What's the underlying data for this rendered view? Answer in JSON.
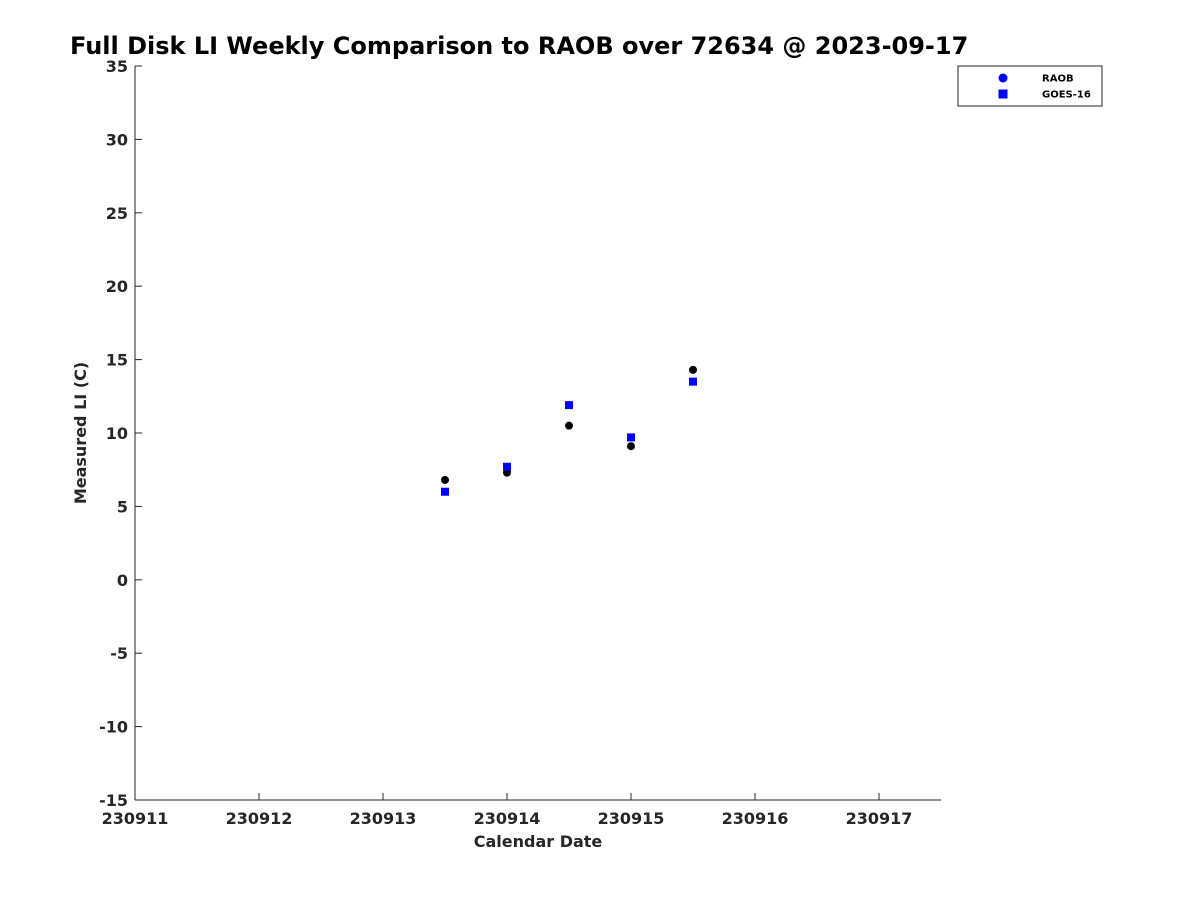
{
  "chart_data": {
    "type": "scatter",
    "title": "Full Disk LI Weekly Comparison to RAOB over 72634 @ 2023-09-17",
    "xlabel": "Calendar Date",
    "ylabel": "Measured LI (C)",
    "x_ticks": [
      "230911",
      "230912",
      "230913",
      "230914",
      "230915",
      "230916",
      "230917"
    ],
    "y_ticks": [
      "35",
      "30",
      "25",
      "20",
      "15",
      "10",
      "5",
      "0",
      "-5",
      "-10",
      "-15"
    ],
    "xlim": [
      0,
      6.5
    ],
    "ylim": [
      -15,
      35
    ],
    "grid": false,
    "legend_position": "top-right",
    "series": [
      {
        "name": "RAOB",
        "marker": "circle",
        "color": "#0000ff",
        "point_color": "#000000",
        "x": [
          2.5,
          3.0,
          3.5,
          4.0,
          4.5
        ],
        "y": [
          6.8,
          7.3,
          10.5,
          9.1,
          14.3
        ]
      },
      {
        "name": "GOES-16",
        "marker": "square",
        "color": "#0000ff",
        "point_color": "#0000ff",
        "x": [
          2.5,
          3.0,
          3.5,
          4.0,
          4.5
        ],
        "y": [
          6.0,
          7.7,
          11.9,
          9.7,
          13.5
        ]
      }
    ]
  }
}
